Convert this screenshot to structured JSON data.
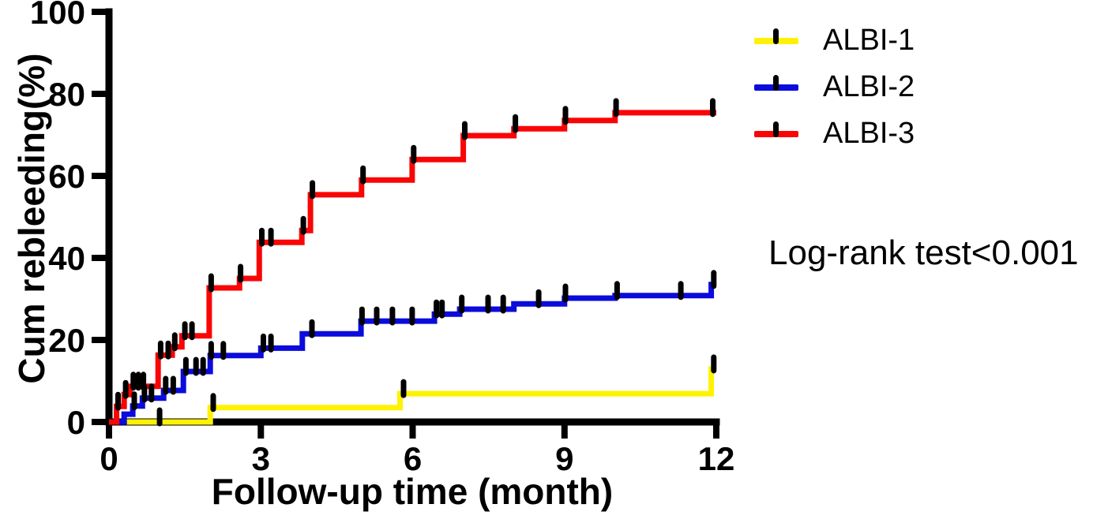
{
  "figure": {
    "background": "#ffffff",
    "axis_color": "#000000"
  },
  "chart_data": {
    "type": "line",
    "subtype": "kaplan-meier-cumulative-incidence-steps",
    "title": "",
    "xlabel": "Follow-up time (month)",
    "ylabel": "Cum rebleeding(%)",
    "annotation": "Log-rank test<0.001",
    "xlim": [
      0,
      12
    ],
    "ylim": [
      0,
      100
    ],
    "x_ticks": [
      0,
      3,
      6,
      9,
      12
    ],
    "y_ticks": [
      0,
      20,
      40,
      60,
      80,
      100
    ],
    "grid": false,
    "legend_position": "right-top",
    "series": [
      {
        "name": "ALBI-1",
        "color": "#FFF200",
        "steps": [
          [
            2.0,
            3.5
          ],
          [
            5.75,
            6.9
          ],
          [
            11.9,
            12.9
          ]
        ],
        "censors": [
          [
            1.0,
            0.0
          ],
          [
            2.06,
            3.5
          ],
          [
            5.82,
            6.9
          ],
          [
            11.95,
            12.9
          ]
        ],
        "end": [
          12,
          12.9
        ]
      },
      {
        "name": "ALBI-2",
        "color": "#0B0BDC",
        "steps": [
          [
            0.3,
            1.9
          ],
          [
            0.47,
            3.9
          ],
          [
            0.66,
            5.8
          ],
          [
            1.08,
            7.7
          ],
          [
            1.47,
            12.3
          ],
          [
            2.0,
            16.2
          ],
          [
            3.0,
            18.0
          ],
          [
            3.82,
            21.5
          ],
          [
            4.98,
            24.6
          ],
          [
            6.43,
            26.3
          ],
          [
            6.93,
            27.5
          ],
          [
            8.0,
            28.8
          ],
          [
            9.0,
            30.2
          ],
          [
            10.0,
            30.8
          ],
          [
            11.9,
            33.5
          ]
        ],
        "censors": [
          [
            0.5,
            3.9
          ],
          [
            0.7,
            5.8
          ],
          [
            0.84,
            5.8
          ],
          [
            1.12,
            7.7
          ],
          [
            1.27,
            7.7
          ],
          [
            1.52,
            12.3
          ],
          [
            1.72,
            12.3
          ],
          [
            1.86,
            12.3
          ],
          [
            2.02,
            16.2
          ],
          [
            2.26,
            16.2
          ],
          [
            3.05,
            18.0
          ],
          [
            3.2,
            18.0
          ],
          [
            4.01,
            21.5
          ],
          [
            5.0,
            24.6
          ],
          [
            5.29,
            24.6
          ],
          [
            5.6,
            24.6
          ],
          [
            5.99,
            24.6
          ],
          [
            6.47,
            26.3
          ],
          [
            6.58,
            26.3
          ],
          [
            6.97,
            27.5
          ],
          [
            7.49,
            27.5
          ],
          [
            7.79,
            27.5
          ],
          [
            8.49,
            28.8
          ],
          [
            9.02,
            30.2
          ],
          [
            10.04,
            30.8
          ],
          [
            11.3,
            30.8
          ],
          [
            11.95,
            33.5
          ]
        ],
        "end": [
          12,
          33.5
        ]
      },
      {
        "name": "ALBI-3",
        "color": "#FA0505",
        "steps": [
          [
            0.15,
            3.8
          ],
          [
            0.3,
            6.7
          ],
          [
            0.42,
            8.7
          ],
          [
            0.97,
            16.3
          ],
          [
            1.25,
            18.3
          ],
          [
            1.44,
            21.0
          ],
          [
            1.98,
            32.7
          ],
          [
            2.58,
            35.0
          ],
          [
            2.97,
            43.8
          ],
          [
            3.81,
            46.7
          ],
          [
            3.98,
            55.4
          ],
          [
            4.99,
            59.0
          ],
          [
            5.99,
            64.0
          ],
          [
            7.0,
            69.8
          ],
          [
            8.0,
            71.5
          ],
          [
            9.0,
            73.5
          ],
          [
            10.0,
            75.4
          ]
        ],
        "censors": [
          [
            0.18,
            3.8
          ],
          [
            0.33,
            6.7
          ],
          [
            0.48,
            8.7
          ],
          [
            0.58,
            8.7
          ],
          [
            0.68,
            8.7
          ],
          [
            1.02,
            16.3
          ],
          [
            1.17,
            16.3
          ],
          [
            1.3,
            18.3
          ],
          [
            1.5,
            21.0
          ],
          [
            1.64,
            21.0
          ],
          [
            2.02,
            32.7
          ],
          [
            2.6,
            35.0
          ],
          [
            3.02,
            43.8
          ],
          [
            3.2,
            43.8
          ],
          [
            3.84,
            46.7
          ],
          [
            4.02,
            55.4
          ],
          [
            5.02,
            59.0
          ],
          [
            6.02,
            64.0
          ],
          [
            7.03,
            69.8
          ],
          [
            8.03,
            71.5
          ],
          [
            9.02,
            73.5
          ],
          [
            10.02,
            75.4
          ],
          [
            11.93,
            75.4
          ]
        ],
        "end": [
          12,
          75.4
        ]
      }
    ]
  }
}
